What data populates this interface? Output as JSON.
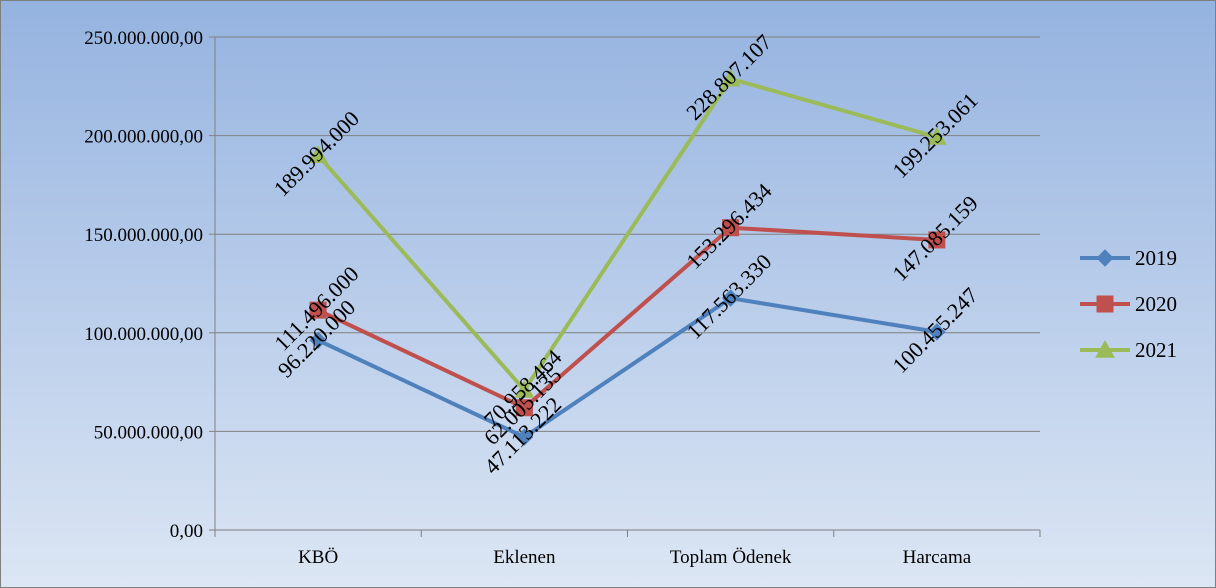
{
  "chart_data": {
    "type": "line",
    "title": "",
    "xlabel": "",
    "ylabel": "",
    "categories": [
      "KBÖ",
      "Eklenen",
      "Toplam Ödenek",
      "Harcama"
    ],
    "ylim": [
      0,
      250000000
    ],
    "y_ticks": [
      0,
      50000000,
      100000000,
      150000000,
      200000000,
      250000000
    ],
    "y_tick_labels": [
      "0,00",
      "50.000.000,00",
      "100.000.000,00",
      "150.000.000,00",
      "200.000.000,00",
      "250.000.000,00"
    ],
    "grid": true,
    "legend_position": "right",
    "series": [
      {
        "name": "2019",
        "color": "#4F81BD",
        "marker": "diamond",
        "values": [
          96220000,
          47113222,
          117563330,
          100455247
        ],
        "labels": [
          "96.220.000",
          "47.113.222",
          "117.563.330",
          "100.455.247"
        ]
      },
      {
        "name": "2020",
        "color": "#C0504D",
        "marker": "square",
        "values": [
          111496000,
          62005135,
          153296434,
          147085159
        ],
        "labels": [
          "111.496.000",
          "62.005.135",
          "153.296.434",
          "147.085.159"
        ]
      },
      {
        "name": "2021",
        "color": "#9BBB59",
        "marker": "triangle",
        "values": [
          189994000,
          70958464,
          228807107,
          199253061
        ],
        "labels": [
          "189.994.000",
          "70.958.464",
          "228.807.107",
          "199.253.061"
        ]
      }
    ]
  }
}
